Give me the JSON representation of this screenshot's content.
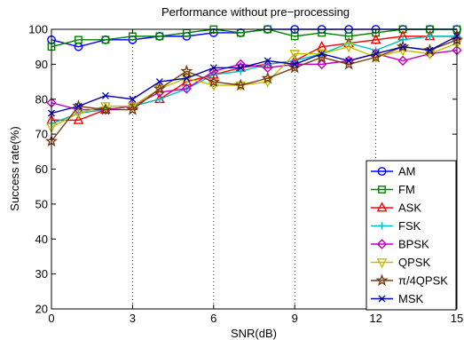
{
  "chart_data": {
    "type": "line",
    "title": "Performance without pre−processing",
    "xlabel": "SNR(dB)",
    "ylabel": "Success rate(%)",
    "xlim": [
      0,
      15
    ],
    "ylim": [
      20,
      100
    ],
    "xticks": [
      0,
      3,
      6,
      9,
      12,
      15
    ],
    "yticks": [
      20,
      30,
      40,
      50,
      60,
      70,
      80,
      90,
      100
    ],
    "grid": "dotted vertical at x ticks, dotted horizontal at y=100",
    "legend_position": "bottom-right",
    "x": [
      0,
      1,
      2,
      3,
      4,
      5,
      6,
      7,
      8,
      9,
      10,
      11,
      12,
      13,
      14,
      15
    ],
    "series": [
      {
        "name": "AM",
        "color": "#0000ff",
        "marker": "circle",
        "values": [
          97,
          95,
          97,
          97,
          98,
          98,
          99,
          99,
          100,
          100,
          100,
          100,
          100,
          100,
          100,
          100
        ]
      },
      {
        "name": "FM",
        "color": "#008000",
        "marker": "square",
        "values": [
          95,
          97,
          97,
          98,
          98,
          99,
          100,
          99,
          100,
          98,
          99,
          98,
          99,
          100,
          100,
          100
        ]
      },
      {
        "name": "ASK",
        "color": "#ff0000",
        "marker": "triangle-up",
        "values": [
          74,
          74,
          77,
          78,
          80,
          85,
          87,
          89,
          90,
          91,
          95,
          96,
          97,
          98,
          98,
          98
        ]
      },
      {
        "name": "FSK",
        "color": "#00bfbf",
        "marker": "plus",
        "values": [
          73,
          76,
          77,
          78,
          80,
          83,
          87,
          88,
          90,
          91,
          93,
          96,
          94,
          97,
          98,
          98
        ]
      },
      {
        "name": "BPSK",
        "color": "#bf00bf",
        "marker": "diamond",
        "values": [
          79,
          77,
          77,
          78,
          82,
          83,
          88,
          90,
          89,
          90,
          90,
          91,
          93,
          91,
          93,
          94
        ]
      },
      {
        "name": "QPSK",
        "color": "#bfbf00",
        "marker": "triangle-down",
        "values": [
          72,
          76,
          78,
          78,
          83,
          86,
          84,
          84,
          85,
          93,
          93,
          95,
          92,
          94,
          93,
          96
        ]
      },
      {
        "name": "π/4QPSK",
        "color": "#7a3a12",
        "marker": "star",
        "values": [
          68,
          78,
          77,
          77,
          83,
          88,
          85,
          84,
          86,
          89,
          92,
          90,
          92,
          95,
          94,
          97
        ]
      },
      {
        "name": "MSK",
        "color": "#0000b0",
        "marker": "x",
        "values": [
          76,
          78,
          81,
          80,
          85,
          86,
          89,
          89,
          91,
          90,
          93,
          91,
          93,
          95,
          94,
          98
        ]
      }
    ]
  }
}
